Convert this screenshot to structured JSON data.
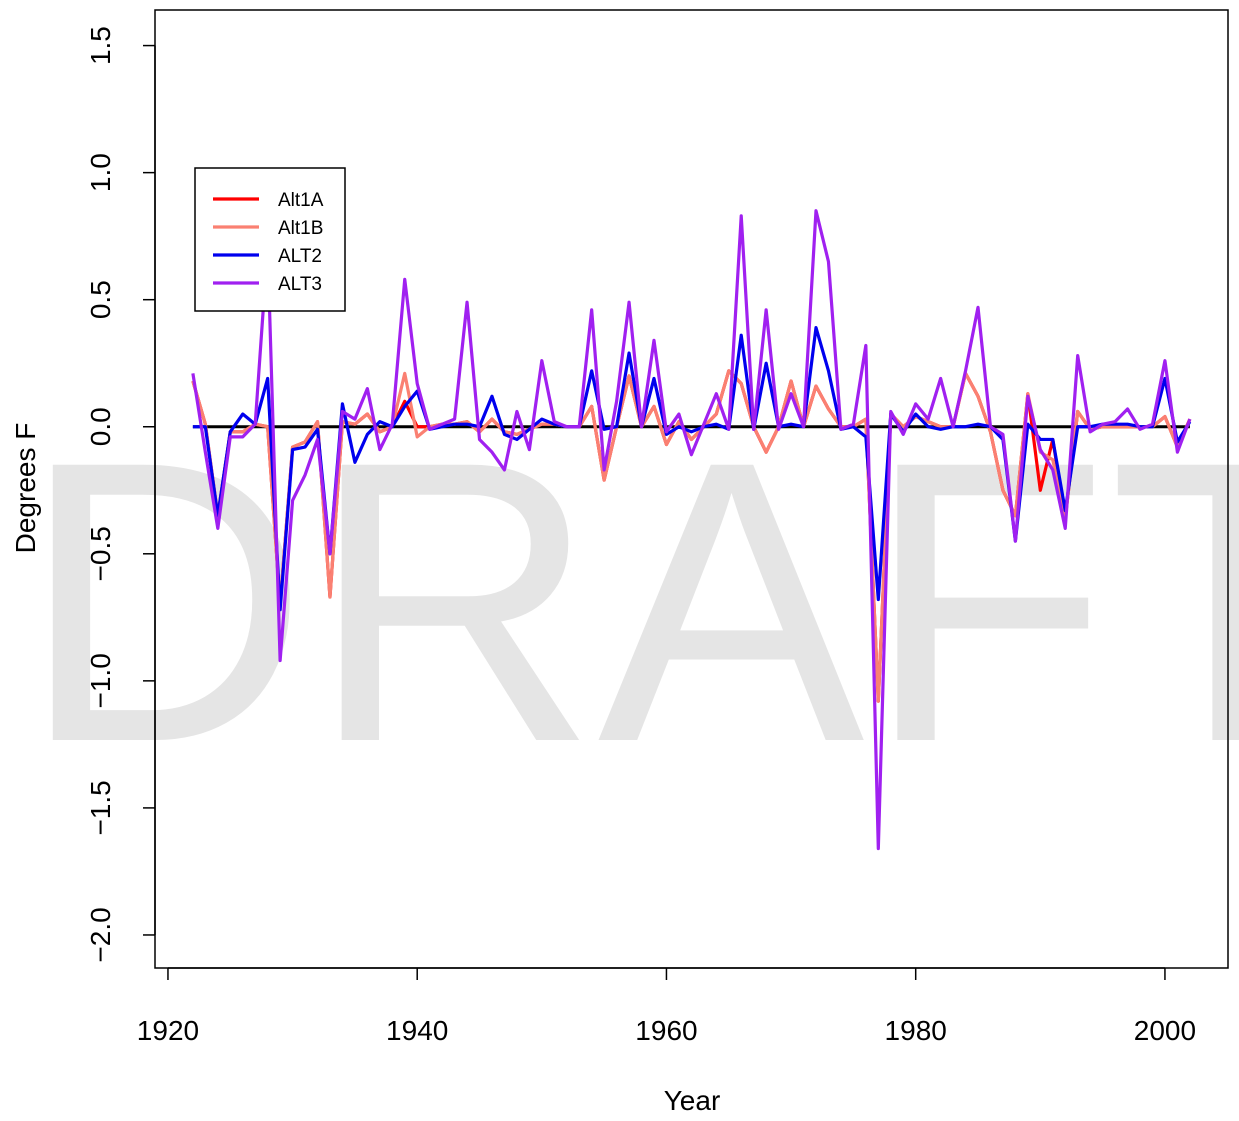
{
  "chart_data": {
    "type": "line",
    "watermark": "DRAFT",
    "x_label": "Year",
    "y_label": "Degrees F",
    "x": [
      1922,
      1923,
      1924,
      1925,
      1926,
      1927,
      1928,
      1929,
      1930,
      1931,
      1932,
      1933,
      1934,
      1935,
      1936,
      1937,
      1938,
      1939,
      1940,
      1941,
      1942,
      1943,
      1944,
      1945,
      1946,
      1947,
      1948,
      1949,
      1950,
      1951,
      1952,
      1953,
      1954,
      1955,
      1956,
      1957,
      1958,
      1959,
      1960,
      1961,
      1962,
      1963,
      1964,
      1965,
      1966,
      1967,
      1968,
      1969,
      1970,
      1971,
      1972,
      1973,
      1974,
      1975,
      1976,
      1977,
      1978,
      1979,
      1980,
      1981,
      1982,
      1983,
      1984,
      1985,
      1986,
      1987,
      1988,
      1989,
      1990,
      1991,
      1992,
      1993,
      1994,
      1995,
      1996,
      1997,
      1998,
      1999,
      2000,
      2001,
      2002
    ],
    "series": [
      {
        "name": "Alt1A",
        "color": "#ff0000",
        "values": [
          0.18,
          0.01,
          -0.35,
          -0.02,
          -0.02,
          0.01,
          0.0,
          -0.7,
          -0.08,
          -0.06,
          0.02,
          -0.67,
          0.02,
          0.01,
          0.05,
          -0.02,
          0.0,
          0.1,
          0.0,
          0.0,
          0.01,
          0.01,
          0.02,
          -0.02,
          0.03,
          -0.02,
          -0.03,
          -0.01,
          0.01,
          0.01,
          0.0,
          0.0,
          0.08,
          -0.21,
          0.0,
          0.2,
          0.0,
          0.08,
          -0.07,
          0.02,
          -0.05,
          0.0,
          0.05,
          0.22,
          0.17,
          0.0,
          -0.1,
          0.0,
          0.18,
          0.0,
          0.16,
          0.07,
          0.0,
          0.0,
          0.03,
          -1.08,
          0.05,
          0.0,
          0.04,
          0.02,
          0.0,
          0.0,
          0.21,
          0.12,
          -0.02,
          -0.25,
          -0.35,
          0.13,
          -0.25,
          -0.05,
          -0.36,
          0.06,
          -0.01,
          0.0,
          0.0,
          0.0,
          0.0,
          0.0,
          0.04,
          -0.08,
          0.03
        ]
      },
      {
        "name": "Alt1B",
        "color": "#fa8072",
        "values": [
          0.18,
          0.01,
          -0.35,
          -0.02,
          -0.02,
          0.01,
          0.0,
          -0.7,
          -0.08,
          -0.06,
          0.02,
          -0.67,
          0.02,
          0.01,
          0.05,
          -0.02,
          0.0,
          0.21,
          -0.04,
          0.0,
          0.01,
          0.01,
          0.02,
          -0.02,
          0.03,
          -0.02,
          -0.03,
          -0.01,
          0.01,
          0.01,
          0.0,
          0.0,
          0.08,
          -0.21,
          0.0,
          0.2,
          0.0,
          0.08,
          -0.07,
          0.02,
          -0.05,
          0.0,
          0.05,
          0.22,
          0.17,
          0.0,
          -0.1,
          0.0,
          0.18,
          0.0,
          0.16,
          0.07,
          0.0,
          0.0,
          0.03,
          -1.08,
          0.05,
          0.0,
          0.04,
          0.02,
          0.0,
          0.0,
          0.21,
          0.12,
          -0.02,
          -0.25,
          -0.35,
          0.13,
          -0.1,
          -0.13,
          -0.36,
          0.06,
          -0.01,
          0.0,
          0.0,
          0.0,
          0.0,
          0.0,
          0.04,
          -0.08,
          0.03
        ]
      },
      {
        "name": "ALT2",
        "color": "#0000ee",
        "values": [
          0.0,
          0.0,
          -0.35,
          -0.02,
          0.05,
          0.01,
          0.19,
          -0.72,
          -0.09,
          -0.08,
          -0.01,
          -0.5,
          0.09,
          -0.14,
          -0.03,
          0.02,
          0.0,
          0.08,
          0.14,
          -0.01,
          0.0,
          0.01,
          0.01,
          0.0,
          0.12,
          -0.03,
          -0.05,
          -0.01,
          0.03,
          0.01,
          0.0,
          0.0,
          0.22,
          -0.01,
          0.0,
          0.29,
          0.0,
          0.19,
          -0.03,
          0.0,
          -0.02,
          0.0,
          0.01,
          -0.01,
          0.36,
          -0.01,
          0.25,
          0.0,
          0.01,
          0.0,
          0.39,
          0.22,
          -0.01,
          0.0,
          -0.04,
          -0.68,
          0.05,
          -0.02,
          0.05,
          0.0,
          -0.01,
          0.0,
          0.0,
          0.01,
          0.0,
          -0.05,
          -0.45,
          0.01,
          -0.05,
          -0.05,
          -0.33,
          0.0,
          0.0,
          0.01,
          0.01,
          0.01,
          0.0,
          0.0,
          0.19,
          -0.06,
          0.02
        ]
      },
      {
        "name": "ALT3",
        "color": "#a020f0",
        "values": [
          0.21,
          -0.1,
          -0.4,
          -0.04,
          -0.04,
          0.01,
          0.71,
          -0.92,
          -0.29,
          -0.19,
          -0.05,
          -0.5,
          0.06,
          0.03,
          0.15,
          -0.09,
          0.01,
          0.58,
          0.17,
          -0.01,
          0.01,
          0.03,
          0.49,
          -0.05,
          -0.1,
          -0.17,
          0.06,
          -0.09,
          0.26,
          0.02,
          0.0,
          0.0,
          0.46,
          -0.17,
          0.1,
          0.49,
          0.0,
          0.34,
          -0.02,
          0.05,
          -0.11,
          0.01,
          0.13,
          -0.01,
          0.83,
          -0.01,
          0.46,
          -0.01,
          0.13,
          0.0,
          0.85,
          0.65,
          -0.01,
          0.01,
          0.32,
          -1.66,
          0.06,
          -0.03,
          0.09,
          0.03,
          0.19,
          0.0,
          0.22,
          0.47,
          0.0,
          -0.03,
          -0.45,
          0.12,
          -0.09,
          -0.17,
          -0.4,
          0.28,
          -0.02,
          0.01,
          0.02,
          0.07,
          -0.01,
          0.01,
          0.26,
          -0.1,
          0.03
        ]
      }
    ],
    "hline": 0,
    "hline_color": "#000000",
    "xlim": [
      1918.96,
      2005.06
    ],
    "xticks": [
      1920,
      1940,
      1960,
      1980,
      2000
    ],
    "ylim": [
      -2.13,
      1.64
    ],
    "yticks": [
      {
        "value": -2.0,
        "label": "−2.0"
      },
      {
        "value": -1.5,
        "label": "−1.5"
      },
      {
        "value": -1.0,
        "label": "−1.0"
      },
      {
        "value": -0.5,
        "label": "−0.5"
      },
      {
        "value": 0.0,
        "label": "0.0"
      },
      0.5,
      {
        "value": 1.0,
        "label": "1.0"
      },
      1.5
    ],
    "legend": "top-left"
  }
}
